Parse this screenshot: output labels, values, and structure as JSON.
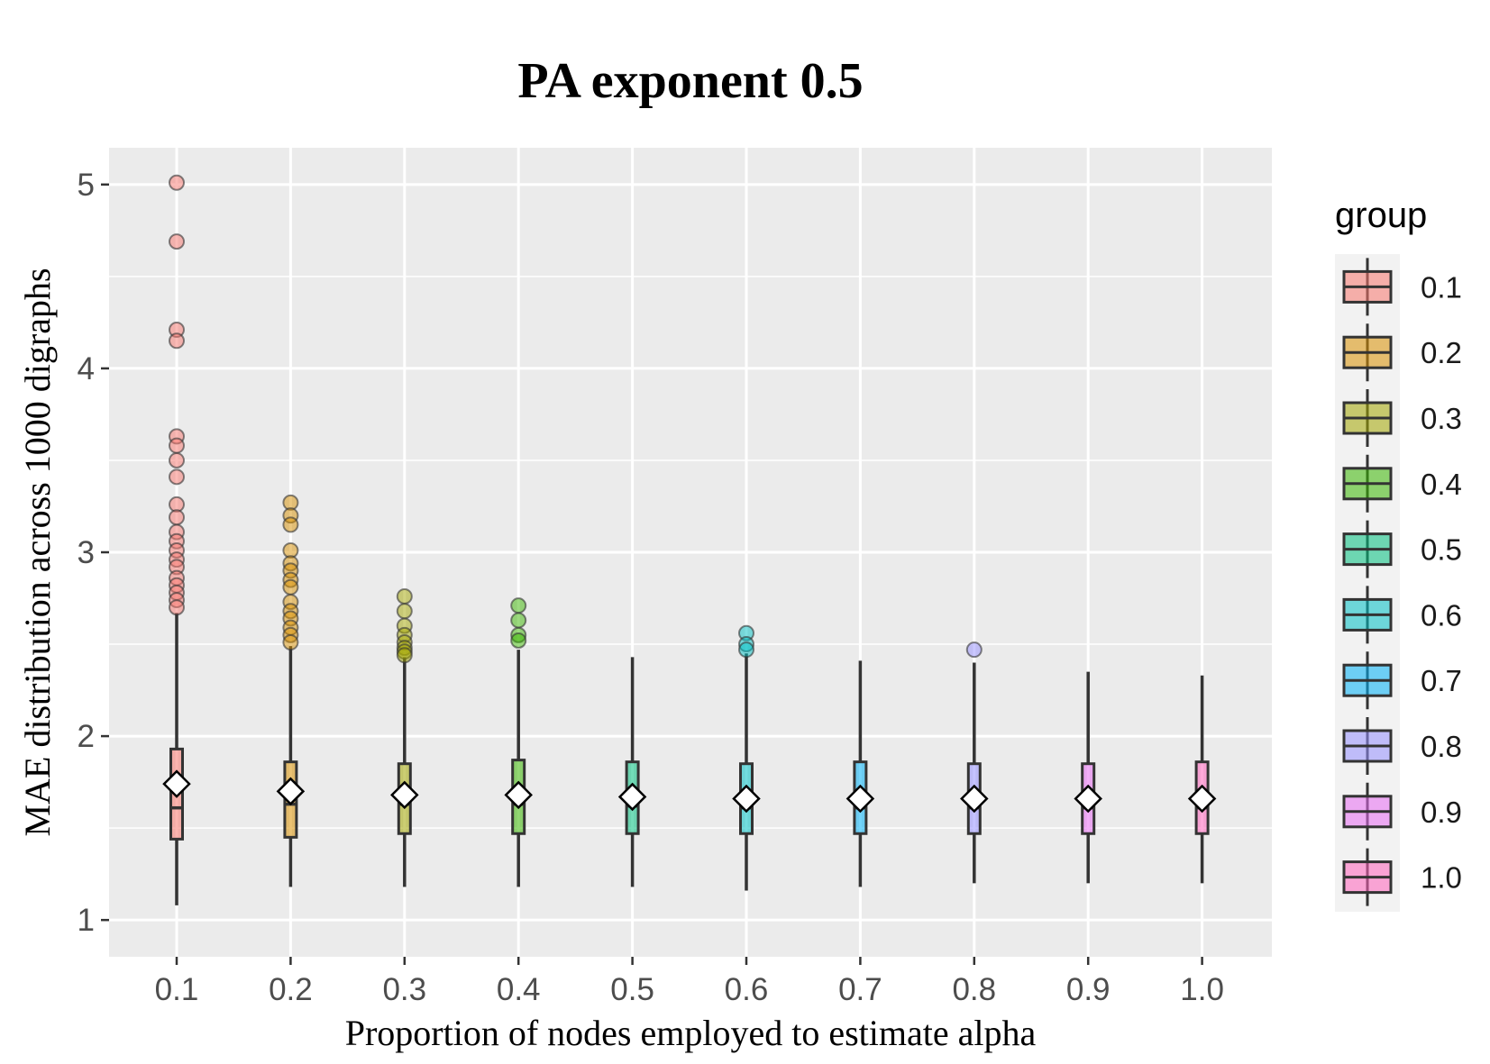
{
  "chart_data": {
    "type": "boxplot",
    "title": "PA exponent 0.5",
    "xlabel": "Proportion of nodes employed to estimate alpha",
    "ylabel": "MAE distribution across 1000 digraphs",
    "ylim": [
      0.8,
      5.2
    ],
    "yticks": [
      1,
      2,
      3,
      4,
      5
    ],
    "yticks_labels": [
      "1",
      "2",
      "3",
      "4",
      "5"
    ],
    "categories": [
      "0.1",
      "0.2",
      "0.3",
      "0.4",
      "0.5",
      "0.6",
      "0.7",
      "0.8",
      "0.9",
      "1.0"
    ],
    "legend": {
      "title": "group",
      "position": "right",
      "entries": [
        "0.1",
        "0.2",
        "0.3",
        "0.4",
        "0.5",
        "0.6",
        "0.7",
        "0.8",
        "0.9",
        "1.0"
      ]
    },
    "colors": [
      "#F8766D",
      "#D89000",
      "#A3A500",
      "#39B600",
      "#00BF7D",
      "#00BFC4",
      "#00B0F6",
      "#9590FF",
      "#E76BF3",
      "#FF62BC"
    ],
    "boxes": [
      {
        "group": "0.1",
        "whisker_low": 1.08,
        "q1": 1.44,
        "median": 1.61,
        "q3": 1.93,
        "whisker_high": 2.67,
        "mean": 1.74,
        "outliers": [
          5.01,
          4.69,
          4.21,
          4.15,
          3.63,
          3.58,
          3.5,
          3.41,
          3.26,
          3.19,
          3.11,
          3.06,
          3.01,
          2.96,
          2.92,
          2.86,
          2.82,
          2.78,
          2.74,
          2.7
        ]
      },
      {
        "group": "0.2",
        "whisker_low": 1.18,
        "q1": 1.45,
        "median": 1.63,
        "q3": 1.86,
        "whisker_high": 2.49,
        "mean": 1.7,
        "outliers": [
          3.27,
          3.2,
          3.15,
          3.01,
          2.94,
          2.9,
          2.85,
          2.81,
          2.73,
          2.68,
          2.64,
          2.59,
          2.55,
          2.51
        ]
      },
      {
        "group": "0.3",
        "whisker_low": 1.18,
        "q1": 1.47,
        "median": 1.63,
        "q3": 1.85,
        "whisker_high": 2.43,
        "mean": 1.68,
        "outliers": [
          2.76,
          2.68,
          2.6,
          2.55,
          2.51,
          2.48,
          2.46,
          2.44
        ]
      },
      {
        "group": "0.4",
        "whisker_low": 1.18,
        "q1": 1.47,
        "median": 1.63,
        "q3": 1.87,
        "whisker_high": 2.47,
        "mean": 1.68,
        "outliers": [
          2.71,
          2.63,
          2.55,
          2.52
        ]
      },
      {
        "group": "0.5",
        "whisker_low": 1.18,
        "q1": 1.47,
        "median": 1.62,
        "q3": 1.86,
        "whisker_high": 2.43,
        "mean": 1.67,
        "outliers": []
      },
      {
        "group": "0.6",
        "whisker_low": 1.16,
        "q1": 1.47,
        "median": 1.61,
        "q3": 1.85,
        "whisker_high": 2.45,
        "mean": 1.66,
        "outliers": [
          2.56,
          2.5,
          2.47
        ]
      },
      {
        "group": "0.7",
        "whisker_low": 1.18,
        "q1": 1.47,
        "median": 1.61,
        "q3": 1.86,
        "whisker_high": 2.41,
        "mean": 1.66,
        "outliers": []
      },
      {
        "group": "0.8",
        "whisker_low": 1.2,
        "q1": 1.47,
        "median": 1.61,
        "q3": 1.85,
        "whisker_high": 2.4,
        "mean": 1.66,
        "outliers": [
          2.47
        ]
      },
      {
        "group": "0.9",
        "whisker_low": 1.2,
        "q1": 1.47,
        "median": 1.61,
        "q3": 1.85,
        "whisker_high": 2.35,
        "mean": 1.66,
        "outliers": []
      },
      {
        "group": "1.0",
        "whisker_low": 1.2,
        "q1": 1.47,
        "median": 1.61,
        "q3": 1.86,
        "whisker_high": 2.33,
        "mean": 1.66,
        "outliers": []
      }
    ]
  }
}
